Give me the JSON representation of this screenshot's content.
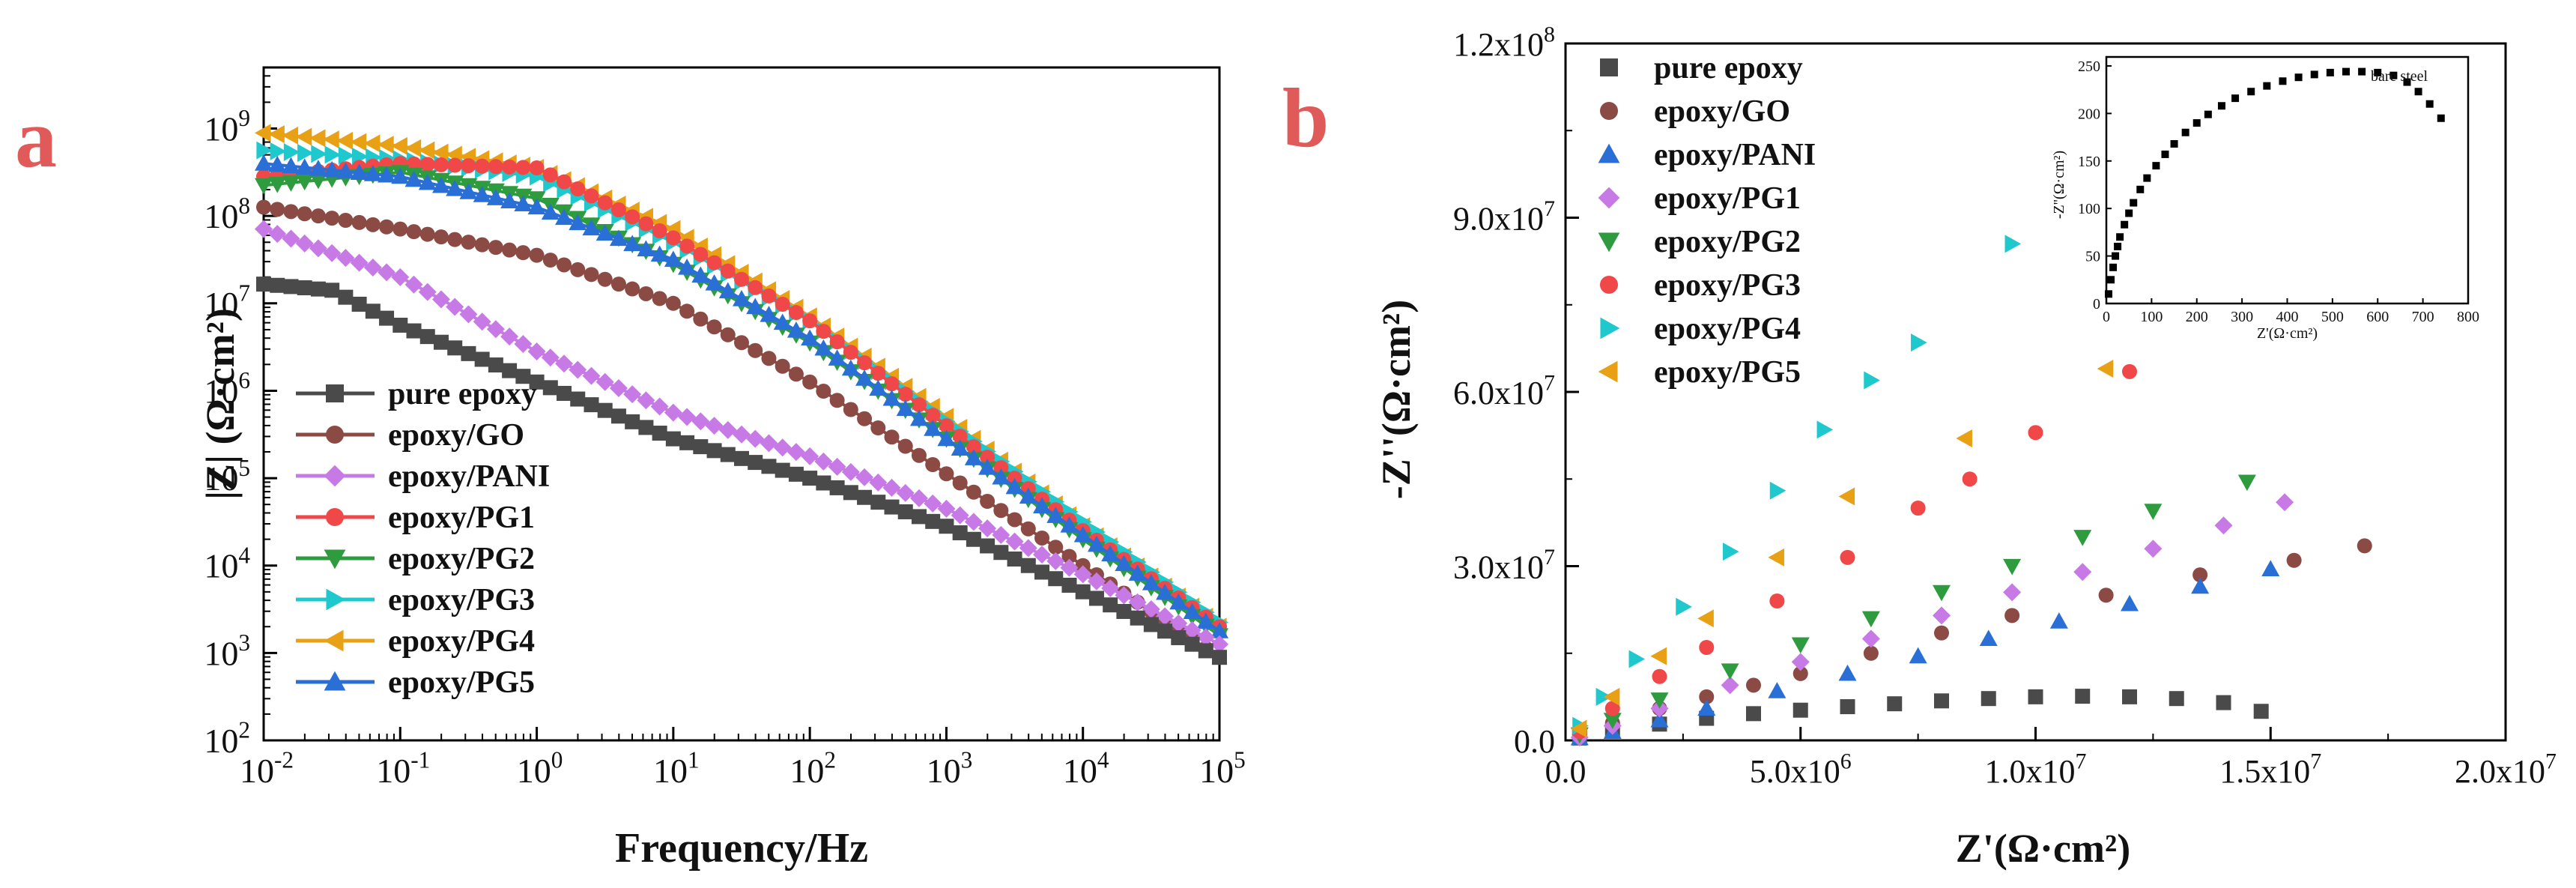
{
  "chart_data": [
    {
      "panel": "a",
      "type": "line",
      "xscale": "log",
      "yscale": "log",
      "xlabel": "Frequency/Hz",
      "ylabel": "|Z| (Ω·cm²)",
      "xlim": [
        0.01,
        100000
      ],
      "ylim": [
        100,
        5000000000
      ],
      "x_ticks": [
        {
          "base": "10",
          "exp": "-2"
        },
        {
          "base": "10",
          "exp": "-1"
        },
        {
          "base": "10",
          "exp": "0"
        },
        {
          "base": "10",
          "exp": "1"
        },
        {
          "base": "10",
          "exp": "2"
        },
        {
          "base": "10",
          "exp": "3"
        },
        {
          "base": "10",
          "exp": "4"
        },
        {
          "base": "10",
          "exp": "5"
        }
      ],
      "y_ticks": [
        {
          "base": "10",
          "exp": "2"
        },
        {
          "base": "10",
          "exp": "3"
        },
        {
          "base": "10",
          "exp": "4"
        },
        {
          "base": "10",
          "exp": "5"
        },
        {
          "base": "10",
          "exp": "6"
        },
        {
          "base": "10",
          "exp": "7"
        },
        {
          "base": "10",
          "exp": "8"
        },
        {
          "base": "10",
          "exp": "9"
        }
      ],
      "legend_position": "bottom-left",
      "series": [
        {
          "name": "pure epoxy",
          "marker": "square",
          "color": "#4a4a4a",
          "log_freq": [
            -2,
            -1.5,
            -1,
            0,
            1,
            2,
            3,
            4,
            5
          ],
          "log_z": [
            7.22,
            7.15,
            6.75,
            6.1,
            5.45,
            5.0,
            4.45,
            3.7,
            2.95
          ]
        },
        {
          "name": "epoxy/GO",
          "marker": "circle",
          "color": "#8c4a44",
          "log_freq": [
            -2,
            -1,
            0,
            1,
            2,
            3,
            4,
            5
          ],
          "log_z": [
            8.1,
            7.85,
            7.55,
            7.0,
            6.1,
            5.05,
            4.0,
            2.95
          ]
        },
        {
          "name": "epoxy/PANI",
          "marker": "diamond",
          "color": "#c77ae6",
          "log_freq": [
            -2,
            -1,
            0,
            1,
            2,
            3,
            4,
            5
          ],
          "log_z": [
            7.85,
            7.3,
            6.45,
            5.75,
            5.25,
            4.65,
            3.9,
            3.1
          ]
        },
        {
          "name": "epoxy/PG1",
          "marker": "circle",
          "color": "#f04848",
          "log_freq": [
            -2,
            -1,
            0,
            1,
            2,
            3,
            4,
            5
          ],
          "log_z": [
            8.45,
            8.6,
            8.55,
            7.75,
            6.8,
            5.6,
            4.4,
            3.3
          ]
        },
        {
          "name": "epoxy/PG2",
          "marker": "triangle-down",
          "color": "#2e9b3e",
          "log_freq": [
            -2,
            -1,
            0,
            1,
            2,
            3,
            4,
            5
          ],
          "log_z": [
            8.35,
            8.5,
            8.2,
            7.45,
            6.55,
            5.45,
            4.3,
            3.2
          ]
        },
        {
          "name": "epoxy/PG3",
          "marker": "triangle-right",
          "color": "#1ec8cc",
          "log_freq": [
            -2,
            -1,
            0,
            1,
            2,
            3,
            4,
            5
          ],
          "log_z": [
            8.75,
            8.65,
            8.45,
            7.7,
            6.8,
            5.65,
            4.5,
            3.35
          ]
        },
        {
          "name": "epoxy/PG4",
          "marker": "triangle-left",
          "color": "#e8a015",
          "log_freq": [
            -2,
            -1,
            0,
            1,
            2,
            3,
            4,
            5
          ],
          "log_z": [
            8.95,
            8.8,
            8.55,
            7.85,
            6.85,
            5.7,
            4.45,
            3.3
          ]
        },
        {
          "name": "epoxy/PG5",
          "marker": "triangle-up",
          "color": "#2a6fd6",
          "log_freq": [
            -2,
            -1,
            0,
            1,
            2,
            3,
            4,
            5
          ],
          "log_z": [
            8.6,
            8.45,
            8.1,
            7.5,
            6.6,
            5.45,
            4.35,
            3.25
          ]
        }
      ]
    },
    {
      "panel": "b",
      "type": "scatter",
      "xlabel": "Z'(Ω·cm²)",
      "ylabel": "-Z''(Ω·cm²)",
      "xlim": [
        0,
        20000000
      ],
      "ylim": [
        0,
        120000000
      ],
      "x_ticks": [
        {
          "value": 0,
          "label": "0.0",
          "exp": ""
        },
        {
          "value": 5000000,
          "label": "5.0x10",
          "exp": "6"
        },
        {
          "value": 10000000,
          "label": "1.0x10",
          "exp": "7"
        },
        {
          "value": 15000000,
          "label": "1.5x10",
          "exp": "7"
        },
        {
          "value": 20000000,
          "label": "2.0x10",
          "exp": "7"
        }
      ],
      "y_ticks": [
        {
          "value": 0,
          "label": "0.0",
          "exp": ""
        },
        {
          "value": 30000000,
          "label": "3.0x10",
          "exp": "7"
        },
        {
          "value": 60000000,
          "label": "6.0x10",
          "exp": "7"
        },
        {
          "value": 90000000,
          "label": "9.0x10",
          "exp": "7"
        },
        {
          "value": 120000000,
          "label": "1.2x10",
          "exp": "8"
        }
      ],
      "legend_position": "top-left",
      "series": [
        {
          "name": "pure epoxy",
          "marker": "square",
          "color": "#4a4a4a",
          "x": [
            0.3,
            1.0,
            2.0,
            3.0,
            4.0,
            5.0,
            6.0,
            7.0,
            8.0,
            9.0,
            10.0,
            11.0,
            12.0,
            13.0,
            14.0,
            14.8
          ],
          "y": [
            0.4,
            1.6,
            2.8,
            3.8,
            4.6,
            5.2,
            5.8,
            6.3,
            6.8,
            7.2,
            7.5,
            7.6,
            7.5,
            7.2,
            6.5,
            5.0
          ]
        },
        {
          "name": "epoxy/GO",
          "marker": "circle",
          "color": "#8c4a44",
          "x": [
            0.3,
            1.0,
            2.0,
            3.0,
            4.0,
            5.0,
            6.5,
            8.0,
            9.5,
            11.5,
            13.5,
            15.5,
            17.0
          ],
          "y": [
            1.0,
            3.0,
            5.5,
            7.5,
            9.5,
            11.5,
            15.0,
            18.5,
            21.5,
            25.0,
            28.5,
            31.0,
            33.5
          ]
        },
        {
          "name": "epoxy/PANI",
          "marker": "triangle-up",
          "color": "#2a6fd6",
          "x": [
            0.3,
            1.0,
            2.0,
            3.0,
            4.5,
            6.0,
            7.5,
            9.0,
            10.5,
            12.0,
            13.5,
            15.0
          ],
          "y": [
            0.4,
            1.5,
            3.5,
            5.5,
            8.5,
            11.5,
            14.5,
            17.5,
            20.5,
            23.5,
            26.5,
            29.5
          ]
        },
        {
          "name": "epoxy/PG1",
          "marker": "diamond",
          "color": "#c77ae6",
          "x": [
            0.3,
            1.0,
            2.0,
            3.5,
            5.0,
            6.5,
            8.0,
            9.5,
            11.0,
            12.5,
            14.0,
            15.3
          ],
          "y": [
            0.5,
            2.5,
            5.5,
            9.5,
            13.5,
            17.5,
            21.5,
            25.5,
            29.0,
            33.0,
            37.0,
            41.0
          ]
        },
        {
          "name": "epoxy/PG2",
          "marker": "triangle-down",
          "color": "#2e9b3e",
          "x": [
            0.3,
            1.0,
            2.0,
            3.5,
            5.0,
            6.5,
            8.0,
            9.5,
            11.0,
            12.5,
            14.5
          ],
          "y": [
            1.0,
            3.5,
            7.0,
            12.0,
            16.5,
            21.0,
            25.5,
            30.0,
            35.0,
            39.5,
            44.5
          ]
        },
        {
          "name": "epoxy/PG3",
          "marker": "circle",
          "color": "#f04848",
          "x": [
            0.3,
            1.0,
            2.0,
            3.0,
            4.5,
            6.0,
            7.5,
            8.6,
            10.0,
            12.0
          ],
          "y": [
            1.5,
            5.5,
            11.0,
            16.0,
            24.0,
            31.5,
            40.0,
            45.0,
            53.0,
            63.5
          ]
        },
        {
          "name": "epoxy/PG4",
          "marker": "triangle-right",
          "color": "#1ec8cc",
          "x": [
            0.3,
            0.8,
            1.5,
            2.5,
            3.5,
            4.5,
            5.5,
            6.5,
            7.5,
            9.5
          ],
          "y": [
            2.5,
            7.5,
            14.0,
            23.0,
            32.5,
            43.0,
            53.5,
            62.0,
            68.5,
            85.5
          ]
        },
        {
          "name": "epoxy/PG5",
          "marker": "triangle-left",
          "color": "#e8a015",
          "x": [
            0.3,
            1.0,
            2.0,
            3.0,
            4.5,
            6.0,
            8.5,
            11.5
          ],
          "y": [
            2.0,
            7.5,
            14.5,
            21.0,
            31.5,
            42.0,
            52.0,
            64.0
          ]
        }
      ],
      "inset": {
        "type": "scatter",
        "label": "bare steel",
        "xlabel": "Z'(Ω·cm²)",
        "ylabel": "-Z''(Ω·cm²)",
        "xlim": [
          0,
          800
        ],
        "ylim": [
          0,
          250
        ],
        "x_ticks": [
          "0",
          "100",
          "200",
          "300",
          "400",
          "500",
          "600",
          "700",
          "800"
        ],
        "y_ticks": [
          "0",
          "50",
          "100",
          "150",
          "200",
          "250"
        ],
        "color": "#000000",
        "x": [
          5,
          10,
          15,
          20,
          25,
          30,
          40,
          50,
          60,
          75,
          90,
          110,
          130,
          150,
          175,
          200,
          225,
          255,
          285,
          320,
          355,
          390,
          425,
          460,
          495,
          530,
          565,
          600,
          635,
          665,
          690,
          715,
          740
        ],
        "y": [
          10,
          25,
          38,
          50,
          60,
          70,
          83,
          95,
          106,
          120,
          132,
          145,
          157,
          168,
          180,
          190,
          199,
          208,
          216,
          223,
          229,
          234,
          238,
          241,
          243,
          244,
          244,
          243,
          240,
          233,
          223,
          210,
          195
        ]
      }
    }
  ]
}
